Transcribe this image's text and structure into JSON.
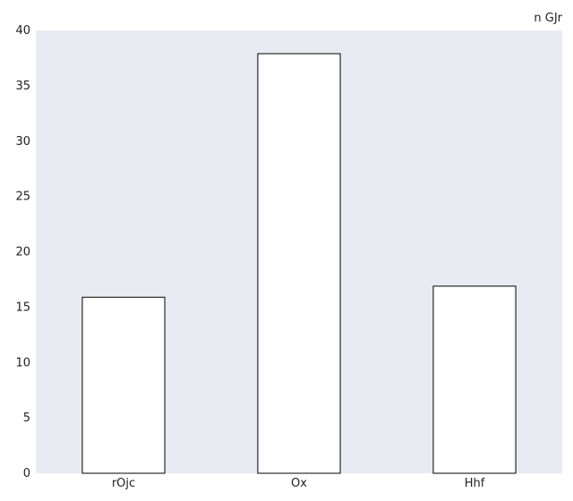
{
  "chart_data": {
    "type": "bar",
    "title": "n GJr",
    "xlabel": "",
    "ylabel": "",
    "categories": [
      "rOjc",
      "Ox",
      "Hhf"
    ],
    "values": [
      15.9,
      37.9,
      16.9
    ],
    "ylim": [
      0,
      40
    ],
    "yticks": [
      0,
      5,
      10,
      15,
      20,
      25,
      30,
      35,
      40
    ],
    "grid": false,
    "legend": "none",
    "colors": {
      "plot_background": "#eaeaf2",
      "bar_fill": "#ffffff",
      "bar_edge": "#000000"
    }
  }
}
